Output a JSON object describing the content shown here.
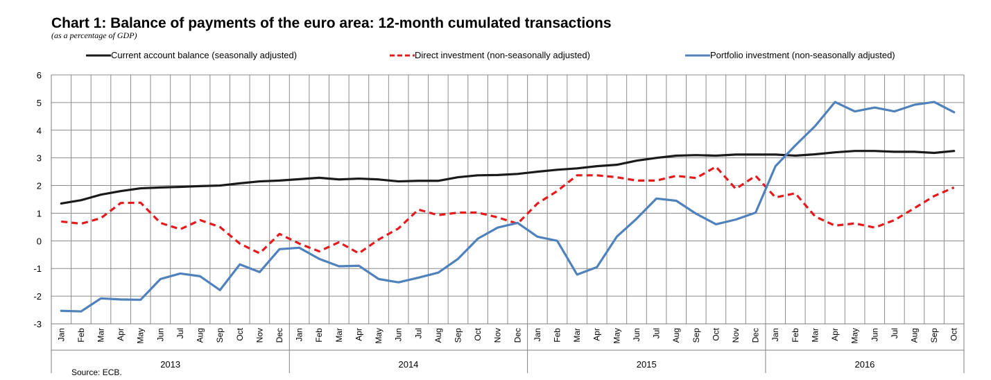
{
  "chart_data": {
    "type": "line",
    "title": "Chart 1: Balance of payments of the euro area: 12-month cumulated transactions",
    "subtitle": "(as a percentage of GDP)",
    "source": "Source: ECB.",
    "ylim": [
      -3,
      6
    ],
    "yticks": [
      -3,
      -2,
      -1,
      0,
      1,
      2,
      3,
      4,
      5,
      6
    ],
    "grid": true,
    "legend_position": "top",
    "months": [
      "Jan",
      "Feb",
      "Mar",
      "Apr",
      "May",
      "Jun",
      "Jul",
      "Aug",
      "Sep",
      "Oct",
      "Nov",
      "Dec",
      "Jan",
      "Feb",
      "Mar",
      "Apr",
      "May",
      "Jun",
      "Jul",
      "Aug",
      "Sep",
      "Oct",
      "Nov",
      "Dec",
      "Jan",
      "Feb",
      "Mar",
      "Apr",
      "May",
      "Jun",
      "Jul",
      "Aug",
      "Sep",
      "Oct",
      "Nov",
      "Dec",
      "Jan",
      "Feb",
      "Mar",
      "Apr",
      "May",
      "Jun",
      "Jul",
      "Aug",
      "Sep",
      "Oct"
    ],
    "years": [
      {
        "label": "2013",
        "start": 0,
        "count": 12
      },
      {
        "label": "2014",
        "start": 12,
        "count": 12
      },
      {
        "label": "2015",
        "start": 24,
        "count": 12
      },
      {
        "label": "2016",
        "start": 36,
        "count": 10
      }
    ],
    "series": [
      {
        "name": "Current account balance (seasonally adjusted)",
        "color": "#1a1a1a",
        "style": "solid",
        "values": [
          1.35,
          1.47,
          1.67,
          1.8,
          1.9,
          1.93,
          1.95,
          1.98,
          2.0,
          2.08,
          2.15,
          2.18,
          2.23,
          2.28,
          2.22,
          2.25,
          2.22,
          2.15,
          2.17,
          2.17,
          2.3,
          2.37,
          2.38,
          2.42,
          2.5,
          2.57,
          2.62,
          2.7,
          2.75,
          2.9,
          3.0,
          3.08,
          3.1,
          3.08,
          3.12,
          3.12,
          3.12,
          3.08,
          3.13,
          3.2,
          3.25,
          3.25,
          3.22,
          3.22,
          3.18,
          3.25
        ]
      },
      {
        "name": "Direct investment (non-seasonally adjusted)",
        "color": "#e41a1c",
        "style": "dashed",
        "values": [
          0.7,
          0.62,
          0.82,
          1.37,
          1.38,
          0.65,
          0.42,
          0.75,
          0.5,
          -0.1,
          -0.45,
          0.25,
          -0.1,
          -0.38,
          -0.05,
          -0.45,
          0.05,
          0.45,
          1.13,
          0.93,
          1.02,
          1.02,
          0.85,
          0.62,
          1.35,
          1.8,
          2.37,
          2.37,
          2.3,
          2.18,
          2.18,
          2.35,
          2.27,
          2.68,
          1.88,
          2.35,
          1.57,
          1.72,
          0.88,
          0.55,
          0.63,
          0.48,
          0.75,
          1.18,
          1.62,
          1.93
        ]
      },
      {
        "name": "Portfolio investment (non-seasonally adjusted)",
        "color": "#4f81bd",
        "style": "solid",
        "values": [
          -2.53,
          -2.55,
          -2.08,
          -2.12,
          -2.13,
          -1.38,
          -1.18,
          -1.28,
          -1.78,
          -0.85,
          -1.13,
          -0.3,
          -0.25,
          -0.65,
          -0.92,
          -0.9,
          -1.38,
          -1.5,
          -1.33,
          -1.15,
          -0.65,
          0.08,
          0.48,
          0.65,
          0.15,
          0.0,
          -1.22,
          -0.95,
          0.15,
          0.8,
          1.53,
          1.45,
          0.98,
          0.6,
          0.77,
          1.02,
          2.7,
          3.45,
          4.15,
          5.02,
          4.68,
          4.82,
          4.68,
          4.92,
          5.02,
          4.65
        ]
      }
    ]
  }
}
